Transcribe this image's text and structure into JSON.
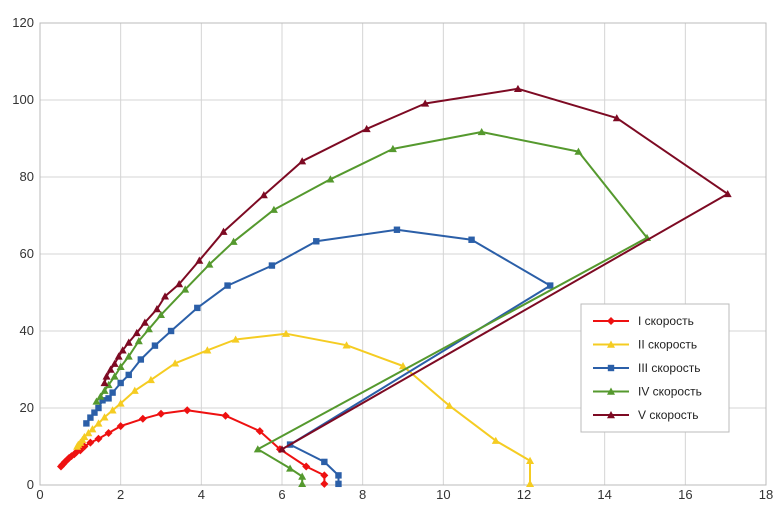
{
  "chart_data": {
    "type": "line",
    "title": "",
    "xlabel": "",
    "ylabel": "",
    "xlim": [
      0,
      18
    ],
    "ylim": [
      0,
      120
    ],
    "x_ticks": [
      0,
      2,
      4,
      6,
      8,
      10,
      12,
      14,
      16,
      18
    ],
    "y_ticks": [
      0,
      20,
      40,
      60,
      80,
      100,
      120
    ],
    "grid": "both",
    "legend_position": "right",
    "series": [
      {
        "name": "I скорость",
        "color": "#ee1111",
        "marker": "diamond",
        "points": [
          [
            7.05,
            0.3
          ],
          [
            7.05,
            2.5
          ],
          [
            6.6,
            4.8
          ],
          [
            5.95,
            9.3
          ],
          [
            5.45,
            14
          ],
          [
            4.6,
            18
          ],
          [
            3.65,
            19.4
          ],
          [
            3.0,
            18.5
          ],
          [
            2.55,
            17.2
          ],
          [
            2.0,
            15.3
          ],
          [
            1.7,
            13.5
          ],
          [
            1.45,
            12
          ],
          [
            1.25,
            11
          ],
          [
            1.1,
            10
          ],
          [
            1.0,
            9
          ],
          [
            0.9,
            8.5
          ],
          [
            0.85,
            8
          ],
          [
            0.78,
            7.5
          ],
          [
            0.72,
            7
          ],
          [
            0.68,
            6.6
          ],
          [
            0.62,
            6
          ],
          [
            0.58,
            5.5
          ],
          [
            0.55,
            5.2
          ],
          [
            0.52,
            4.8
          ]
        ]
      },
      {
        "name": "II скорость",
        "color": "#f5cc22",
        "marker": "triangle",
        "points": [
          [
            12.15,
            0.3
          ],
          [
            12.15,
            6.3
          ],
          [
            11.3,
            11.5
          ],
          [
            10.15,
            20.6
          ],
          [
            9.0,
            30.9
          ],
          [
            7.6,
            36.3
          ],
          [
            6.1,
            39.3
          ],
          [
            4.85,
            37.8
          ],
          [
            4.15,
            35
          ],
          [
            3.35,
            31.6
          ],
          [
            2.75,
            27.3
          ],
          [
            2.35,
            24.5
          ],
          [
            2.0,
            21.2
          ],
          [
            1.8,
            19.4
          ],
          [
            1.6,
            17.6
          ],
          [
            1.45,
            16
          ],
          [
            1.3,
            14.5
          ],
          [
            1.2,
            13.5
          ],
          [
            1.1,
            12.5
          ],
          [
            1.05,
            11.7
          ],
          [
            1.0,
            11
          ],
          [
            0.95,
            10.5
          ],
          [
            0.92,
            10
          ]
        ]
      },
      {
        "name": "III скорость",
        "color": "#2b5fa8",
        "marker": "square",
        "points": [
          [
            7.4,
            0.3
          ],
          [
            7.4,
            2.5
          ],
          [
            7.05,
            6
          ],
          [
            6.2,
            10.5
          ],
          [
            12.65,
            51.8
          ],
          [
            10.7,
            63.7
          ],
          [
            8.85,
            66.3
          ],
          [
            6.85,
            63.3
          ],
          [
            5.75,
            57
          ],
          [
            4.65,
            51.8
          ],
          [
            3.9,
            46
          ],
          [
            3.25,
            40
          ],
          [
            2.85,
            36.2
          ],
          [
            2.5,
            32.6
          ],
          [
            2.2,
            28.6
          ],
          [
            2.0,
            26.5
          ],
          [
            1.8,
            24
          ],
          [
            1.7,
            22.5
          ],
          [
            1.55,
            22
          ],
          [
            1.45,
            20
          ],
          [
            1.35,
            18.8
          ],
          [
            1.25,
            17.5
          ],
          [
            1.15,
            16
          ]
        ]
      },
      {
        "name": "IV скорость",
        "color": "#55992e",
        "marker": "triangle",
        "points": [
          [
            6.5,
            0.3
          ],
          [
            6.5,
            2.2
          ],
          [
            6.2,
            4.3
          ],
          [
            5.4,
            9.3
          ],
          [
            15.05,
            64.2
          ],
          [
            13.35,
            86.6
          ],
          [
            10.95,
            91.7
          ],
          [
            8.75,
            87.3
          ],
          [
            7.2,
            79.4
          ],
          [
            5.8,
            71.5
          ],
          [
            4.8,
            63.2
          ],
          [
            4.2,
            57.3
          ],
          [
            3.6,
            50.8
          ],
          [
            3.0,
            44.2
          ],
          [
            2.7,
            40.5
          ],
          [
            2.45,
            37.4
          ],
          [
            2.2,
            33.4
          ],
          [
            2.0,
            30.7
          ],
          [
            1.85,
            28.2
          ],
          [
            1.7,
            26
          ],
          [
            1.6,
            24.5
          ],
          [
            1.5,
            23
          ],
          [
            1.4,
            21.7
          ]
        ]
      },
      {
        "name": "V скорость",
        "color": "#7d0a23",
        "marker": "triangle",
        "points": [
          [
            6.0,
            9.3
          ],
          [
            17.05,
            75.6
          ],
          [
            14.3,
            95.3
          ],
          [
            11.85,
            102.9
          ],
          [
            9.55,
            99.1
          ],
          [
            8.1,
            92.5
          ],
          [
            6.5,
            84.1
          ],
          [
            5.55,
            75.3
          ],
          [
            4.55,
            65.8
          ],
          [
            3.95,
            58.3
          ],
          [
            3.45,
            52.2
          ],
          [
            3.1,
            49
          ],
          [
            2.9,
            45.7
          ],
          [
            2.6,
            42.2
          ],
          [
            2.4,
            39.5
          ],
          [
            2.2,
            37
          ],
          [
            2.05,
            35
          ],
          [
            1.95,
            33.4
          ],
          [
            1.85,
            31.5
          ],
          [
            1.75,
            30
          ],
          [
            1.65,
            28.2
          ],
          [
            1.6,
            26.5
          ]
        ]
      }
    ]
  }
}
